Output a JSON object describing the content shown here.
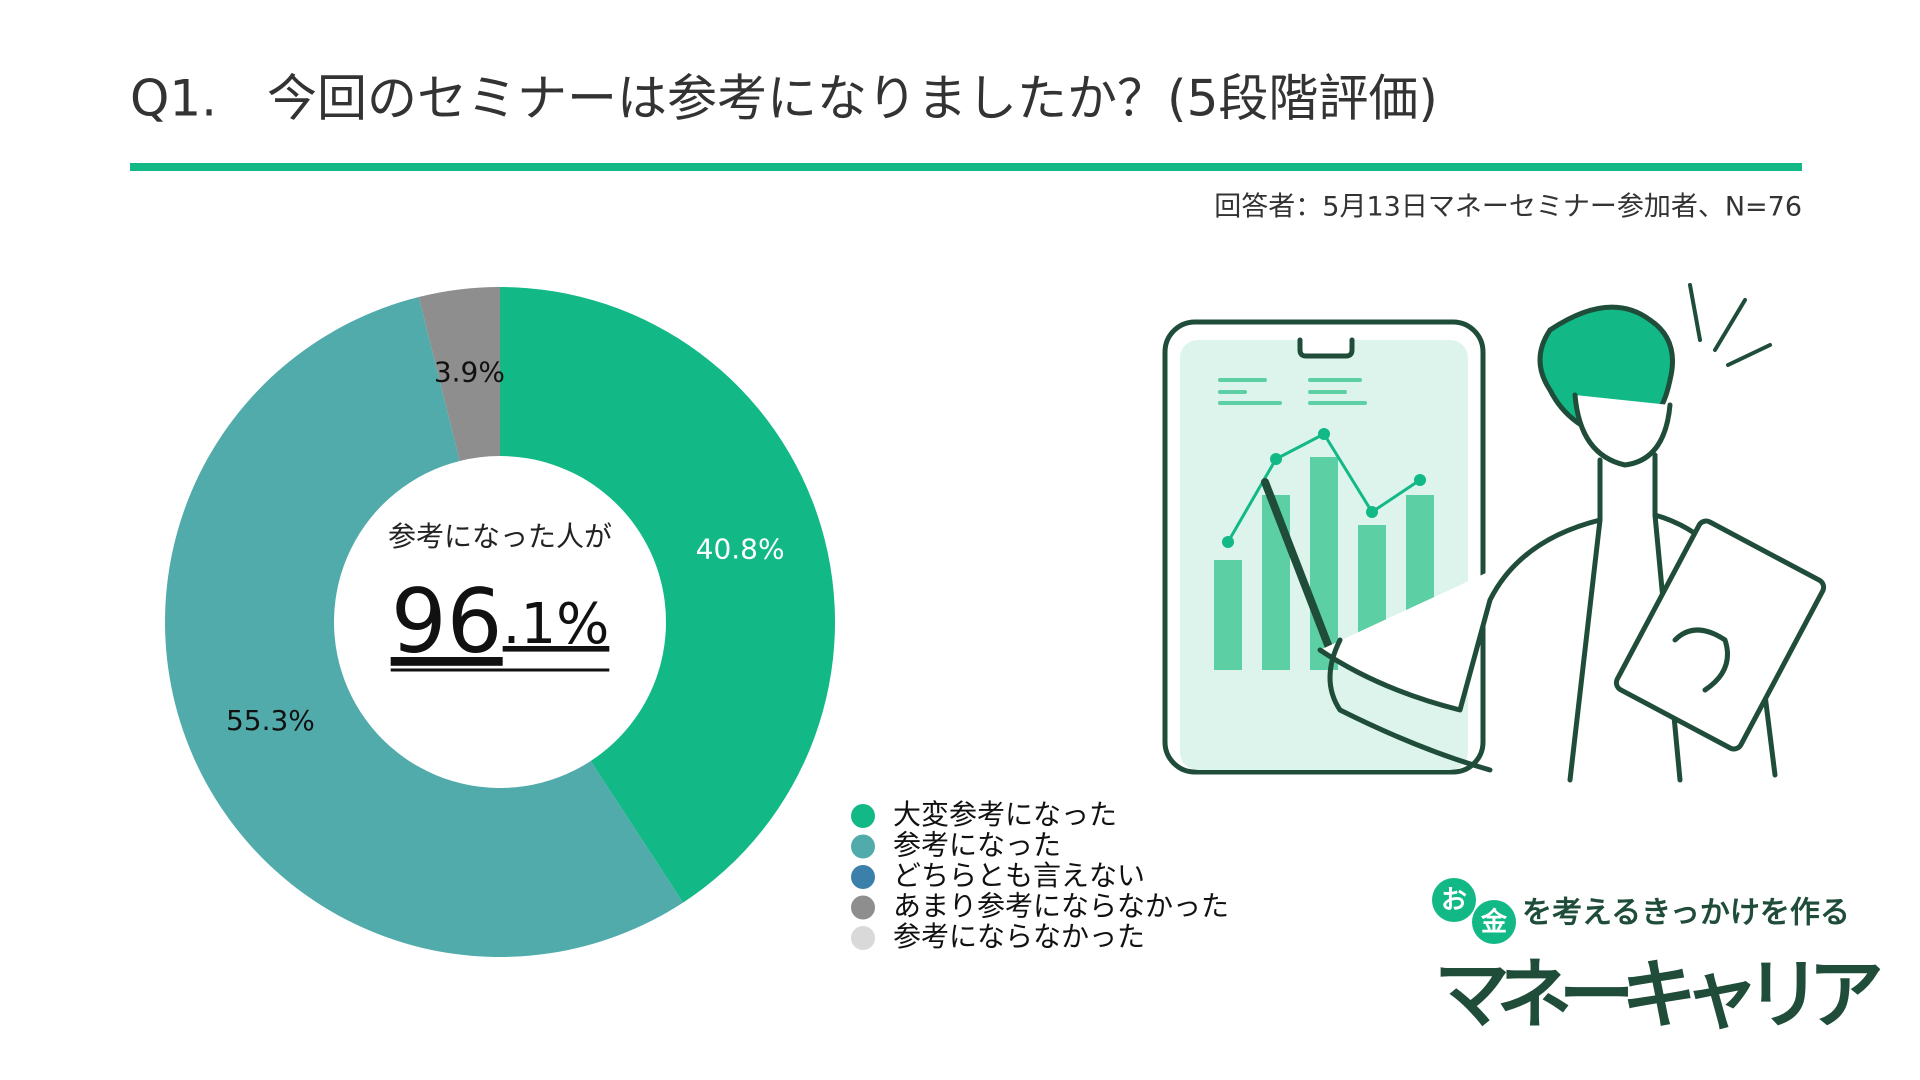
{
  "chart_data": {
    "type": "donut",
    "title": "Q1.　今回のセミナーは参考になりましたか？(5段階評価)",
    "subtitle": "回答者：5月13日マネーセミナー参加者、N=76",
    "center_text": "参考になった人が",
    "center_value": 96.1,
    "center_value_label": "96.1%",
    "categories": [
      "大変参考になった",
      "参考になった",
      "どちらとも言えない",
      "あまり参考にならなかった",
      "参考にならなかった"
    ],
    "values": [
      40.8,
      55.3,
      0,
      3.9,
      0
    ],
    "value_labels": [
      "40.8%",
      "55.3%",
      null,
      "3.9%",
      null
    ],
    "colors": [
      "#12b886",
      "#52abab",
      "#3b7fab",
      "#8e8e8e",
      "#d9d9d9"
    ],
    "label_colors": [
      "#ffffff",
      "#111111",
      "#111111",
      "#111111",
      "#111111"
    ]
  },
  "logo": {
    "badges": [
      "お",
      "金"
    ],
    "tagline": "を考えるきっかけを作る",
    "name": "マネーキャリア"
  }
}
